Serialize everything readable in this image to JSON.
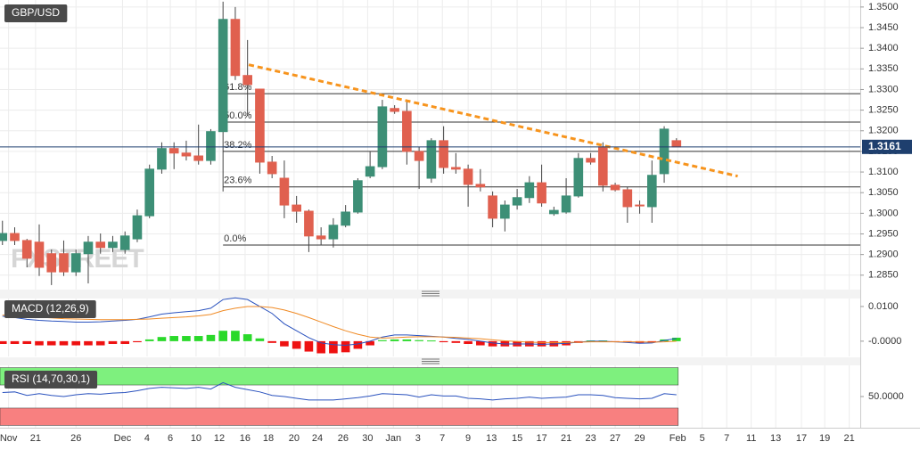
{
  "chart_data": [
    {
      "type": "candlestick",
      "title": "GBP/USD",
      "watermark": "FXSTREET",
      "up_color": "#3d8f76",
      "down_color": "#e0604f",
      "open": [
        1.2934,
        1.2951,
        1.2934,
        1.293,
        1.2902,
        1.2902,
        1.2858,
        1.2902,
        1.293,
        1.2917,
        1.2912,
        1.2938,
        1.2994,
        1.3107,
        1.3157,
        1.3146,
        1.3139,
        1.3128,
        1.3198,
        1.347,
        1.3334,
        1.3301,
        1.3124,
        1.3085,
        1.302,
        1.3005,
        1.2945,
        1.2938,
        1.2971,
        1.3003,
        1.309,
        1.3113,
        1.3254,
        1.3247,
        1.315,
        1.3085,
        1.3176,
        1.3111,
        1.3107,
        1.307,
        1.3042,
        1.2988,
        1.302,
        1.3038,
        1.3074,
        1.2999,
        1.3003,
        1.3042,
        1.3133,
        1.3161,
        1.3068,
        1.3057,
        1.302,
        1.3016,
        1.3096,
        1.3176
      ],
      "high": [
        1.2982,
        1.2966,
        1.2938,
        1.2973,
        1.2912,
        1.2934,
        1.2912,
        1.2945,
        1.2951,
        1.2945,
        1.2956,
        1.3009,
        1.3118,
        1.3172,
        1.3172,
        1.3176,
        1.3215,
        1.3204,
        1.3513,
        1.35,
        1.342,
        1.3301,
        1.3139,
        1.3128,
        1.3042,
        1.3009,
        1.2966,
        1.2988,
        1.302,
        1.3085,
        1.315,
        1.3275,
        1.3262,
        1.3275,
        1.3161,
        1.3182,
        1.3211,
        1.3146,
        1.3118,
        1.3107,
        1.3053,
        1.3031,
        1.3059,
        1.309,
        1.3118,
        1.3016,
        1.3085,
        1.3146,
        1.3146,
        1.3172,
        1.3074,
        1.3064,
        1.3031,
        1.3128,
        1.3211,
        1.3182
      ],
      "low": [
        1.2923,
        1.2923,
        1.2869,
        1.2848,
        1.2826,
        1.2848,
        1.2848,
        1.283,
        1.2902,
        1.2906,
        1.2902,
        1.293,
        1.2988,
        1.3096,
        1.3107,
        1.3128,
        1.3118,
        1.3118,
        1.3053,
        1.3323,
        1.3236,
        1.3096,
        1.3085,
        1.2988,
        1.2977,
        1.2906,
        1.2923,
        1.2917,
        1.2966,
        1.2999,
        1.3085,
        1.3107,
        1.3241,
        1.3118,
        1.3059,
        1.3074,
        1.3096,
        1.3096,
        1.3016,
        1.3053,
        1.2966,
        1.2956,
        1.3009,
        1.3025,
        1.3016,
        1.2994,
        1.2999,
        1.3038,
        1.3118,
        1.3053,
        1.3053,
        1.2977,
        1.2999,
        1.2977,
        1.3074,
        1.3161
      ],
      "close": [
        1.2951,
        1.2934,
        1.2891,
        1.2869,
        1.2858,
        1.2858,
        1.2902,
        1.293,
        1.2917,
        1.293,
        1.2945,
        1.2994,
        1.3107,
        1.3157,
        1.3146,
        1.3139,
        1.3128,
        1.3198,
        1.347,
        1.3334,
        1.3312,
        1.3124,
        1.3096,
        1.302,
        1.3005,
        1.2945,
        1.2938,
        1.2971,
        1.3003,
        1.3079,
        1.3113,
        1.3258,
        1.3247,
        1.315,
        1.3128,
        1.3176,
        1.3111,
        1.3107,
        1.307,
        1.3064,
        1.2988,
        1.302,
        1.3038,
        1.3074,
        1.3025,
        1.3007,
        1.3042,
        1.3133,
        1.3124,
        1.3068,
        1.3057,
        1.3016,
        1.3018,
        1.3092,
        1.3204,
        1.3161
      ],
      "xlim": [
        -0.2,
        70
      ],
      "xticks": [
        {
          "value": 0.5,
          "label": "Nov"
        },
        {
          "value": 2.7,
          "label": "21"
        },
        {
          "value": 6.0,
          "label": "26"
        },
        {
          "value": 9.8,
          "label": "Dec"
        },
        {
          "value": 11.8,
          "label": "4"
        },
        {
          "value": 13.7,
          "label": "6"
        },
        {
          "value": 15.8,
          "label": "10"
        },
        {
          "value": 17.7,
          "label": "12"
        },
        {
          "value": 19.8,
          "label": "16"
        },
        {
          "value": 21.7,
          "label": "18"
        },
        {
          "value": 23.8,
          "label": "20"
        },
        {
          "value": 25.7,
          "label": "24"
        },
        {
          "value": 27.8,
          "label": "26"
        },
        {
          "value": 29.8,
          "label": "30"
        },
        {
          "value": 31.9,
          "label": "Jan"
        },
        {
          "value": 33.9,
          "label": "3"
        },
        {
          "value": 35.9,
          "label": "7"
        },
        {
          "value": 38.0,
          "label": "9"
        },
        {
          "value": 39.9,
          "label": "13"
        },
        {
          "value": 42.0,
          "label": "15"
        },
        {
          "value": 44.0,
          "label": "17"
        },
        {
          "value": 46.0,
          "label": "21"
        },
        {
          "value": 48.0,
          "label": "23"
        },
        {
          "value": 50.0,
          "label": "27"
        },
        {
          "value": 52.0,
          "label": "29"
        },
        {
          "value": 55.1,
          "label": "Feb"
        },
        {
          "value": 57.1,
          "label": "5"
        },
        {
          "value": 59.1,
          "label": "7"
        },
        {
          "value": 61.1,
          "label": "11"
        },
        {
          "value": 63.1,
          "label": "13"
        },
        {
          "value": 65.2,
          "label": "17"
        },
        {
          "value": 67.1,
          "label": "19"
        },
        {
          "value": 69.1,
          "label": "21"
        }
      ],
      "ylim": [
        1.2815,
        1.3517
      ],
      "yticks": [
        {
          "value": 1.285,
          "label": "1.2850"
        },
        {
          "value": 1.29,
          "label": "1.2900"
        },
        {
          "value": 1.295,
          "label": "1.2950"
        },
        {
          "value": 1.3,
          "label": "1.3000"
        },
        {
          "value": 1.305,
          "label": "1.3050"
        },
        {
          "value": 1.31,
          "label": "1.3100"
        },
        {
          "value": 1.315,
          "label": "1.3150"
        },
        {
          "value": 1.32,
          "label": "1.3200"
        },
        {
          "value": 1.325,
          "label": "1.3250"
        },
        {
          "value": 1.33,
          "label": "1.3300"
        },
        {
          "value": 1.335,
          "label": "1.3350"
        },
        {
          "value": 1.34,
          "label": "1.3400"
        },
        {
          "value": 1.345,
          "label": "1.3450"
        },
        {
          "value": 1.35,
          "label": "1.3500"
        }
      ],
      "grid": true,
      "last_price": 1.3161,
      "last_price_color": "#1e3f6e",
      "fib_levels": [
        {
          "value": 1.329,
          "label": "61.8%"
        },
        {
          "value": 1.3221,
          "label": "50.0%"
        },
        {
          "value": 1.315,
          "label": "38.2%"
        },
        {
          "value": 1.3064,
          "label": "23.6%"
        },
        {
          "value": 1.2923,
          "label": "0.0%"
        }
      ],
      "trendline": {
        "x": [
          20.1,
          60.0
        ],
        "y": [
          1.336,
          1.309
        ],
        "color": "#f7941d"
      }
    },
    {
      "type": "macd",
      "title": "MACD (12,26,9)",
      "ylim": [
        -0.0044,
        0.0123
      ],
      "yticks": [
        {
          "value": 0.01,
          "label": "0.0100"
        },
        {
          "value": 0,
          "label": "-0.0000"
        }
      ],
      "histogram": {
        "up_color": "#2ad92a",
        "down_color": "#ee1111",
        "values": [
          -0.0008,
          -0.0008,
          -0.0008,
          -0.0012,
          -0.0012,
          -0.0012,
          -0.0012,
          -0.0012,
          -0.0012,
          -0.0008,
          -0.0008,
          -0.0003,
          0.0005,
          0.0012,
          0.0015,
          0.0015,
          0.0015,
          0.0018,
          0.003,
          0.003,
          0.002,
          0.0008,
          -0.0005,
          -0.0015,
          -0.0022,
          -0.003,
          -0.0035,
          -0.0035,
          -0.0032,
          -0.0022,
          -0.0012,
          0.0003,
          0.0005,
          0.0005,
          0.0003,
          0.0002,
          -0.0003,
          -0.0005,
          -0.0008,
          -0.0012,
          -0.0015,
          -0.0015,
          -0.0015,
          -0.0015,
          -0.0015,
          -0.0015,
          -0.0012,
          -0.0005,
          0.0002,
          0.0002,
          -0.0002,
          -0.0003,
          -0.0005,
          -0.0004,
          0.0005,
          0.001
        ]
      },
      "series": [
        {
          "color": "#2a52be",
          "values": [
            0.0072,
            0.0068,
            0.0063,
            0.006,
            0.0058,
            0.0057,
            0.0055,
            0.0055,
            0.0056,
            0.0058,
            0.006,
            0.0063,
            0.007,
            0.0078,
            0.0082,
            0.0085,
            0.0088,
            0.0095,
            0.012,
            0.0125,
            0.012,
            0.01,
            0.008,
            0.005,
            0.003,
            0.001,
            -0.0005,
            -0.001,
            -0.0012,
            -0.0008,
            0.0,
            0.0012,
            0.0018,
            0.0018,
            0.0016,
            0.0014,
            0.0012,
            0.0008,
            0.0005,
            0.0,
            -0.0005,
            -0.0008,
            -0.0008,
            -0.0008,
            -0.0009,
            -0.0008,
            -0.0006,
            -0.0003,
            0.0,
            0.0,
            -0.0002,
            -0.0004,
            -0.0006,
            -0.0005,
            0.0002,
            0.0008
          ]
        },
        {
          "color": "#f08a24",
          "values": [
            0.0075,
            0.0073,
            0.0071,
            0.0069,
            0.0067,
            0.0065,
            0.0064,
            0.0063,
            0.0062,
            0.0062,
            0.0062,
            0.0063,
            0.0064,
            0.0066,
            0.0068,
            0.007,
            0.0073,
            0.0077,
            0.0088,
            0.0095,
            0.01,
            0.01,
            0.0097,
            0.009,
            0.008,
            0.0068,
            0.0055,
            0.0042,
            0.003,
            0.002,
            0.0012,
            0.0009,
            0.001,
            0.0012,
            0.0013,
            0.0013,
            0.0012,
            0.0011,
            0.0009,
            0.0007,
            0.0004,
            0.0001,
            -0.0001,
            -0.0003,
            -0.0004,
            -0.0004,
            -0.0004,
            -0.0003,
            -0.0002,
            -0.0002,
            -0.0002,
            -0.0002,
            -0.0002,
            -0.0003,
            -0.0002,
            0.0
          ]
        }
      ]
    },
    {
      "type": "rsi",
      "title": "RSI (14,70,30,1)",
      "ylim": [
        -4,
        104
      ],
      "yticks": [
        {
          "value": 50,
          "label": "50.0000"
        }
      ],
      "bands": [
        {
          "from": 70,
          "to": 100,
          "color": "#7ef07e"
        },
        {
          "from": 0,
          "to": 30,
          "color": "#f88080"
        }
      ],
      "series": [
        {
          "color": "#2a52be",
          "values": [
            57,
            58,
            52,
            55,
            52,
            50,
            53,
            55,
            54,
            56,
            57,
            60,
            64,
            66,
            65,
            64,
            66,
            63,
            74,
            66,
            62,
            58,
            52,
            50,
            47,
            44,
            44,
            44,
            46,
            48,
            51,
            55,
            54,
            53,
            49,
            53,
            51,
            51,
            47,
            46,
            44,
            46,
            47,
            49,
            47,
            48,
            49,
            53,
            53,
            52,
            48,
            47,
            46,
            47,
            55,
            53
          ]
        }
      ]
    }
  ]
}
